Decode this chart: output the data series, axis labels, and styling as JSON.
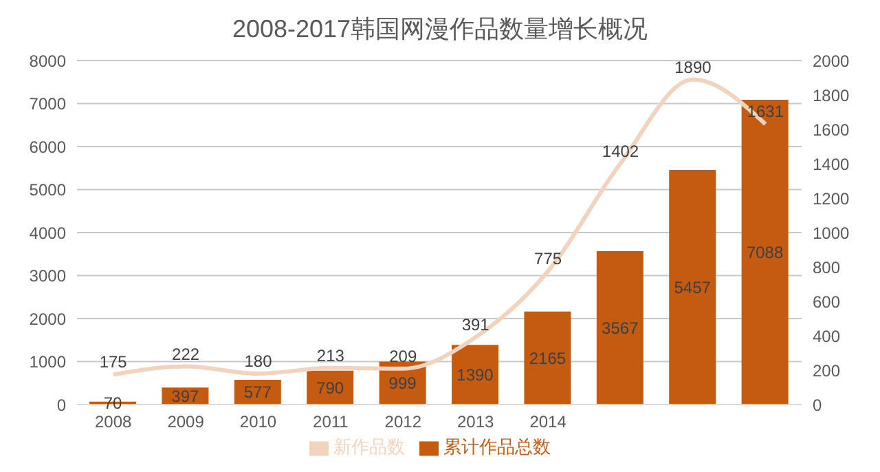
{
  "chart_data": {
    "type": "bar",
    "title": "2008-2017韩国网漫作品数量增长概况",
    "categories": [
      "2008",
      "2009",
      "2010",
      "2011",
      "2012",
      "2013",
      "2014",
      null,
      null,
      null
    ],
    "series": [
      {
        "name": "累计作品总数",
        "color": "#c55a11",
        "values": [
          70,
          397,
          577,
          790,
          999,
          1390,
          2165,
          3567,
          5457,
          7088
        ]
      },
      {
        "name": "新作品数",
        "type": "line",
        "axis": "y2",
        "color": "#f2d3bd",
        "values": [
          175,
          222,
          180,
          213,
          209,
          391,
          775,
          1402,
          1890,
          1631
        ]
      }
    ],
    "ylim": [
      0,
      8000
    ],
    "yticks": [
      0,
      1000,
      2000,
      3000,
      4000,
      5000,
      6000,
      7000,
      8000
    ],
    "y2lim": [
      0,
      2000
    ],
    "y2ticks": [
      0,
      200,
      400,
      600,
      800,
      1000,
      1200,
      1400,
      1600,
      1800,
      2000
    ],
    "grid": "y",
    "legend": "bottom",
    "data_labels": true,
    "marker": "none"
  }
}
